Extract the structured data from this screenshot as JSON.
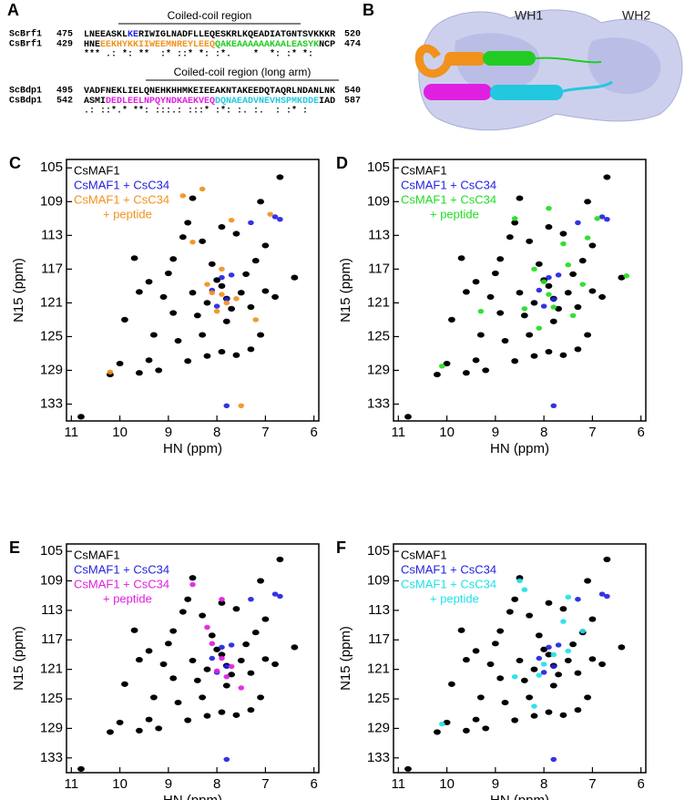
{
  "panel_a": {
    "label": "A",
    "blocks": [
      {
        "header": "Coiled-coil region",
        "rows": [
          {
            "name": "ScBrf1",
            "start": "475",
            "segments": [
              {
                "text": "LNEEASKL",
                "color": "#000000"
              },
              {
                "text": "KE",
                "color": "#2222e0"
              },
              {
                "text": "RIWIGLNADFLLEQESKRLKQEADIATGNTSVKKKR",
                "color": "#000000"
              }
            ],
            "end": "520"
          },
          {
            "name": "CsBrf1",
            "start": "429",
            "segments": [
              {
                "text": "HNE",
                "color": "#000000"
              },
              {
                "text": "EEKHYKKIIWEEMNREYLEEQ",
                "color": "#f0921c"
              },
              {
                "text": "QAKEAAAAAAKAALEASYK",
                "color": "#22cc22"
              },
              {
                "text": "NCP",
                "color": "#000000"
              }
            ],
            "end": "474"
          }
        ],
        "consensus": "*** .: *: **  :* ::* *: :*.    *  *: :* *:"
      },
      {
        "header": "Coiled-coil region (long arm)",
        "rows": [
          {
            "name": "ScBdp1",
            "start": "495",
            "segments": [
              {
                "text": "VADFNEKLIELQNEHKHHMKEIEEAKNTAKEEDQTAQRLNDANLNK",
                "color": "#000000"
              }
            ],
            "end": "540"
          },
          {
            "name": "CsBdp1",
            "start": "542",
            "segments": [
              {
                "text": "ASMI",
                "color": "#000000"
              },
              {
                "text": "DEDLEELNPQYNDKAEKVEQ",
                "color": "#e020e0"
              },
              {
                "text": "DQNAEADVNEVHSPMKDDE",
                "color": "#22c8e0"
              },
              {
                "text": "IAD",
                "color": "#000000"
              }
            ],
            "end": "587"
          }
        ],
        "consensus": ".: ::*.* **: :::.: :::* :*: :. :.  : :* :"
      }
    ]
  },
  "panel_b": {
    "label": "B",
    "domains": [
      "WH1",
      "WH2"
    ]
  },
  "chart_data": [
    {
      "type": "scatter",
      "label": "C",
      "xlabel": "HN (ppm)",
      "ylabel": "N15 (ppm)",
      "xlim": [
        11.1,
        5.9
      ],
      "ylim": [
        104,
        135
      ],
      "xticks": [
        11,
        10,
        9,
        8,
        7,
        6
      ],
      "yticks": [
        105,
        109,
        113,
        117,
        121,
        125,
        129,
        133
      ],
      "series": [
        {
          "name": [
            "CsMAF1"
          ],
          "color": "#000000",
          "x": [
            10.8,
            10.2,
            10.0,
            9.6,
            9.4,
            9.2,
            9.9,
            9.6,
            9.4,
            9.1,
            9.0,
            8.9,
            8.7,
            8.6,
            8.5,
            8.4,
            8.3,
            8.8,
            8.2,
            7.9,
            7.6,
            7.3,
            7.1,
            8.1,
            8.0,
            7.9,
            7.8,
            7.7,
            7.5,
            7.4,
            7.2,
            7.0,
            7.6,
            7.9,
            8.3,
            7.3,
            7.0,
            6.8,
            6.4,
            8.5,
            6.7,
            7.1,
            8.9,
            9.7,
            8.2,
            7.8,
            8.6,
            9.3
          ],
          "y": [
            134.5,
            129.5,
            128.2,
            129.3,
            127.8,
            129.0,
            123.0,
            119.7,
            118.5,
            120.3,
            117.5,
            115.8,
            113.2,
            111.5,
            119.8,
            122.5,
            124.8,
            125.5,
            127.3,
            126.8,
            127.2,
            126.5,
            124.8,
            116.4,
            118.3,
            119.0,
            120.5,
            121.7,
            119.8,
            117.6,
            116.0,
            114.2,
            112.8,
            112.0,
            113.7,
            121.5,
            119.6,
            120.3,
            118.0,
            108.6,
            106.1,
            109.0,
            122.2,
            115.7,
            121.0,
            123.2,
            127.9,
            124.8
          ]
        },
        {
          "name": [
            "CsMAF1 + CsC34"
          ],
          "color": "#2222e0",
          "x": [
            7.8,
            6.8,
            6.7,
            7.9,
            7.8,
            8.0,
            7.7,
            8.1,
            7.3
          ],
          "y": [
            133.2,
            110.8,
            111.1,
            118.0,
            120.6,
            121.4,
            117.7,
            119.5,
            111.5
          ]
        },
        {
          "name": [
            "CsMAF1 + CsC34",
            "+ peptide"
          ],
          "color": "#f0921c",
          "x": [
            7.9,
            7.8,
            8.1,
            8.0,
            7.6,
            8.2,
            8.7,
            8.3,
            7.5,
            7.7,
            6.9,
            8.5,
            10.2,
            7.2,
            7.9
          ],
          "y": [
            120.0,
            121.0,
            119.8,
            122.0,
            120.5,
            118.8,
            108.3,
            107.5,
            133.2,
            111.2,
            110.5,
            113.8,
            129.2,
            123.0,
            117.0
          ]
        }
      ]
    },
    {
      "type": "scatter",
      "label": "D",
      "xlabel": "HN (ppm)",
      "ylabel": "N15 (ppm)",
      "xlim": [
        11.1,
        5.9
      ],
      "ylim": [
        104,
        135
      ],
      "xticks": [
        11,
        10,
        9,
        8,
        7,
        6
      ],
      "yticks": [
        105,
        109,
        113,
        117,
        121,
        125,
        129,
        133
      ],
      "series": [
        {
          "name": [
            "CsMAF1"
          ],
          "color": "#000000",
          "x": [
            10.8,
            10.2,
            10.0,
            9.6,
            9.4,
            9.2,
            9.9,
            9.6,
            9.4,
            9.1,
            9.0,
            8.9,
            8.7,
            8.6,
            8.5,
            8.4,
            8.3,
            8.8,
            8.2,
            7.9,
            7.6,
            7.3,
            7.1,
            8.1,
            8.0,
            7.9,
            7.8,
            7.7,
            7.5,
            7.4,
            7.2,
            7.0,
            7.6,
            7.9,
            8.3,
            7.3,
            7.0,
            6.8,
            6.4,
            8.5,
            6.7,
            7.1,
            8.9,
            9.7,
            8.2,
            7.8,
            8.6,
            9.3
          ],
          "y": [
            134.5,
            129.5,
            128.2,
            129.3,
            127.8,
            129.0,
            123.0,
            119.7,
            118.5,
            120.3,
            117.5,
            115.8,
            113.2,
            111.5,
            119.8,
            122.5,
            124.8,
            125.5,
            127.3,
            126.8,
            127.2,
            126.5,
            124.8,
            116.4,
            118.3,
            119.0,
            120.5,
            121.7,
            119.8,
            117.6,
            116.0,
            114.2,
            112.8,
            112.0,
            113.7,
            121.5,
            119.6,
            120.3,
            118.0,
            108.6,
            106.1,
            109.0,
            122.2,
            115.7,
            121.0,
            123.2,
            127.9,
            124.8
          ]
        },
        {
          "name": [
            "CsMAF1 + CsC34"
          ],
          "color": "#2222e0",
          "x": [
            7.8,
            6.8,
            6.7,
            7.9,
            7.8,
            8.0,
            7.7,
            8.1,
            7.3
          ],
          "y": [
            133.2,
            110.8,
            111.1,
            118.0,
            120.6,
            121.4,
            117.7,
            119.5,
            111.5
          ]
        },
        {
          "name": [
            "CsMAF1 + CsC34",
            "+ peptide"
          ],
          "color": "#22dd22",
          "x": [
            7.9,
            8.0,
            7.8,
            8.2,
            7.5,
            7.2,
            6.3,
            10.1,
            8.6,
            7.9,
            6.9,
            7.4,
            8.4,
            9.3,
            8.1,
            7.1,
            7.6
          ],
          "y": [
            120.0,
            118.5,
            121.5,
            117.0,
            116.5,
            118.8,
            117.8,
            128.5,
            111.0,
            109.8,
            111.0,
            122.5,
            121.7,
            122.0,
            124.0,
            113.3,
            114.0
          ]
        }
      ]
    },
    {
      "type": "scatter",
      "label": "E",
      "xlabel": "HN (ppm)",
      "ylabel": "N15 (ppm)",
      "xlim": [
        11.1,
        5.9
      ],
      "ylim": [
        104,
        135
      ],
      "xticks": [
        11,
        10,
        9,
        8,
        7,
        6
      ],
      "yticks": [
        105,
        109,
        113,
        117,
        121,
        125,
        129,
        133
      ],
      "series": [
        {
          "name": [
            "CsMAF1"
          ],
          "color": "#000000",
          "x": [
            10.8,
            10.2,
            10.0,
            9.6,
            9.4,
            9.2,
            9.9,
            9.6,
            9.4,
            9.1,
            9.0,
            8.9,
            8.7,
            8.6,
            8.5,
            8.4,
            8.3,
            8.8,
            8.2,
            7.9,
            7.6,
            7.3,
            7.1,
            8.1,
            8.0,
            7.9,
            7.8,
            7.7,
            7.5,
            7.4,
            7.2,
            7.0,
            7.6,
            7.9,
            8.3,
            7.3,
            7.0,
            6.8,
            6.4,
            8.5,
            6.7,
            7.1,
            8.9,
            9.7,
            8.2,
            7.8,
            8.6,
            9.3
          ],
          "y": [
            134.5,
            129.5,
            128.2,
            129.3,
            127.8,
            129.0,
            123.0,
            119.7,
            118.5,
            120.3,
            117.5,
            115.8,
            113.2,
            111.5,
            119.8,
            122.5,
            124.8,
            125.5,
            127.3,
            126.8,
            127.2,
            126.5,
            124.8,
            116.4,
            118.3,
            119.0,
            120.5,
            121.7,
            119.8,
            117.6,
            116.0,
            114.2,
            112.8,
            112.0,
            113.7,
            121.5,
            119.6,
            120.3,
            118.0,
            108.6,
            106.1,
            109.0,
            122.2,
            115.7,
            121.0,
            123.2,
            127.9,
            124.8
          ]
        },
        {
          "name": [
            "CsMAF1 + CsC34"
          ],
          "color": "#2222e0",
          "x": [
            7.8,
            6.8,
            6.7,
            7.9,
            7.8,
            8.0,
            7.7,
            8.1,
            7.3
          ],
          "y": [
            133.2,
            110.8,
            111.1,
            118.0,
            120.6,
            121.4,
            117.7,
            119.5,
            111.5
          ]
        },
        {
          "name": [
            "CsMAF1 + CsC34",
            "+ peptide"
          ],
          "color": "#e020e0",
          "x": [
            7.9,
            8.0,
            7.8,
            8.1,
            7.7,
            8.5,
            7.9,
            7.5,
            8.2
          ],
          "y": [
            119.5,
            121.2,
            122.0,
            117.5,
            120.6,
            109.5,
            111.5,
            123.5,
            115.3
          ]
        }
      ]
    },
    {
      "type": "scatter",
      "label": "F",
      "xlabel": "HN (ppm)",
      "ylabel": "N15 (ppm)",
      "xlim": [
        11.1,
        5.9
      ],
      "ylim": [
        104,
        135
      ],
      "xticks": [
        11,
        10,
        9,
        8,
        7,
        6
      ],
      "yticks": [
        105,
        109,
        113,
        117,
        121,
        125,
        129,
        133
      ],
      "series": [
        {
          "name": [
            "CsMAF1"
          ],
          "color": "#000000",
          "x": [
            10.8,
            10.2,
            10.0,
            9.6,
            9.4,
            9.2,
            9.9,
            9.6,
            9.4,
            9.1,
            9.0,
            8.9,
            8.7,
            8.6,
            8.5,
            8.4,
            8.3,
            8.8,
            8.2,
            7.9,
            7.6,
            7.3,
            7.1,
            8.1,
            8.0,
            7.9,
            7.8,
            7.7,
            7.5,
            7.4,
            7.2,
            7.0,
            7.6,
            7.9,
            8.3,
            7.3,
            7.0,
            6.8,
            6.4,
            8.5,
            6.7,
            7.1,
            8.9,
            9.7,
            8.2,
            7.8,
            8.6,
            9.3
          ],
          "y": [
            134.5,
            129.5,
            128.2,
            129.3,
            127.8,
            129.0,
            123.0,
            119.7,
            118.5,
            120.3,
            117.5,
            115.8,
            113.2,
            111.5,
            119.8,
            122.5,
            124.8,
            125.5,
            127.3,
            126.8,
            127.2,
            126.5,
            124.8,
            116.4,
            118.3,
            119.0,
            120.5,
            121.7,
            119.8,
            117.6,
            116.0,
            114.2,
            112.8,
            112.0,
            113.7,
            121.5,
            119.6,
            120.3,
            118.0,
            108.6,
            106.1,
            109.0,
            122.2,
            115.7,
            121.0,
            123.2,
            127.9,
            124.8
          ]
        },
        {
          "name": [
            "CsMAF1 + CsC34"
          ],
          "color": "#2222e0",
          "x": [
            7.8,
            6.8,
            6.7,
            7.9,
            7.8,
            8.0,
            7.7,
            8.1,
            7.3
          ],
          "y": [
            133.2,
            110.8,
            111.1,
            118.0,
            120.6,
            121.4,
            117.7,
            119.5,
            111.5
          ]
        },
        {
          "name": [
            "CsMAF1 + CsC34",
            "+ peptide"
          ],
          "color": "#22e0e8",
          "x": [
            8.0,
            8.1,
            7.8,
            7.5,
            7.2,
            8.4,
            8.5,
            7.5,
            7.6,
            8.6,
            10.1,
            8.2
          ],
          "y": [
            120.3,
            121.8,
            119.0,
            118.5,
            115.8,
            110.2,
            109.0,
            111.2,
            114.5,
            122.0,
            128.4,
            126.0
          ]
        }
      ]
    }
  ]
}
